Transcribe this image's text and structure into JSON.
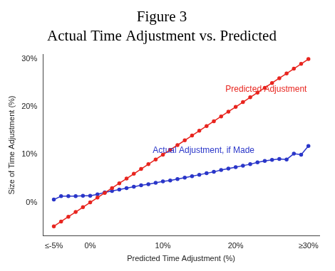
{
  "chart_data": {
    "type": "line",
    "title": "Figure 3",
    "subtitle": "Actual Time Adjustment vs. Predicted",
    "x_label": "Predicted Time Adjustment (%)",
    "y_label": "Size of Time Adjustment (%)",
    "x": [
      -5,
      -4,
      -3,
      -2,
      -1,
      0,
      1,
      2,
      3,
      4,
      5,
      6,
      7,
      8,
      9,
      10,
      11,
      12,
      13,
      14,
      15,
      16,
      17,
      18,
      19,
      20,
      21,
      22,
      23,
      24,
      25,
      26,
      27,
      28,
      29,
      30
    ],
    "series": [
      {
        "color": "#e8251f",
        "marker": "circle",
        "line_style": "solid",
        "values": [
          -5,
          -4,
          -3,
          -2,
          -1,
          0,
          1,
          2,
          3,
          4,
          5,
          6,
          7,
          8,
          9,
          10,
          11,
          12,
          13,
          14,
          15,
          16,
          17,
          18,
          19,
          20,
          21,
          22,
          23,
          24,
          25,
          26,
          27,
          28,
          29,
          30
        ]
      },
      {
        "color": "#2a36c9",
        "marker": "circle",
        "line_style": "solid",
        "values": [
          0.6,
          1.3,
          1.3,
          1.3,
          1.4,
          1.4,
          1.7,
          2.1,
          2.4,
          2.7,
          3.0,
          3.3,
          3.6,
          3.8,
          4.1,
          4.4,
          4.6,
          4.9,
          5.2,
          5.5,
          5.8,
          6.1,
          6.4,
          6.8,
          7.1,
          7.4,
          7.7,
          8.0,
          8.4,
          8.7,
          8.9,
          9.1,
          9.0,
          10.2,
          10.0,
          11.8
        ]
      }
    ],
    "annotations": [
      {
        "text": "Predicted Adjustment",
        "x": 18.6,
        "y": 23.6,
        "color": "#e8251f"
      },
      {
        "text": "Actual Adjustment, if Made",
        "x": 8.6,
        "y": 10.9,
        "color": "#2a36c9"
      }
    ],
    "xlim": [
      -6.5,
      31.5
    ],
    "xticks": [
      {
        "value": -5,
        "label": "≤-5%"
      },
      {
        "value": 0,
        "label": "0%"
      },
      {
        "value": 10,
        "label": "10%"
      },
      {
        "value": 20,
        "label": "20%"
      },
      {
        "value": 30,
        "label": "≥30%"
      }
    ],
    "ylim": [
      -7,
      31
    ],
    "yticks": [
      {
        "value": 0,
        "label": "0%"
      },
      {
        "value": 10,
        "label": "10%"
      },
      {
        "value": 20,
        "label": "20%"
      },
      {
        "value": 30,
        "label": "30%"
      }
    ],
    "grid": false
  }
}
